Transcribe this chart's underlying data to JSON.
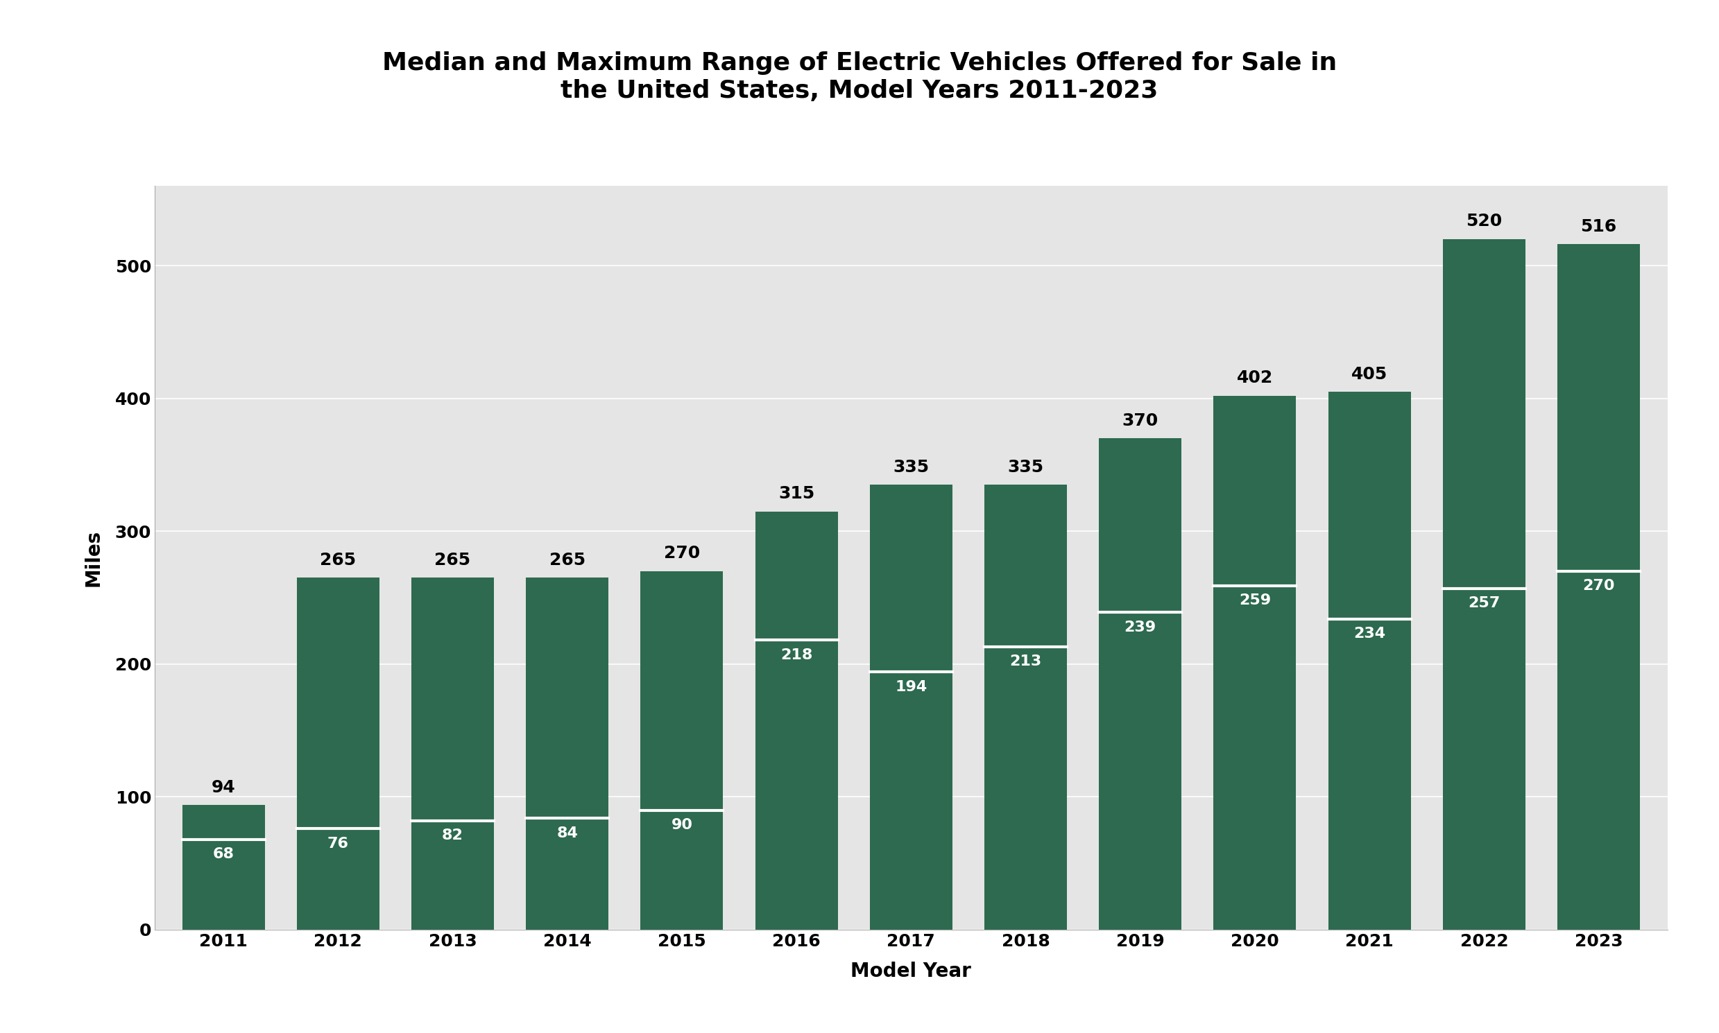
{
  "years": [
    2011,
    2012,
    2013,
    2014,
    2015,
    2016,
    2017,
    2018,
    2019,
    2020,
    2021,
    2022,
    2023
  ],
  "max_range": [
    94,
    265,
    265,
    265,
    270,
    315,
    335,
    335,
    370,
    402,
    405,
    520,
    516
  ],
  "median_range": [
    68,
    76,
    82,
    84,
    90,
    218,
    194,
    213,
    239,
    259,
    234,
    257,
    270
  ],
  "bar_color": "#2d6a4f",
  "median_line_color": "#ffffff",
  "background_color": "#e5e5e5",
  "outer_background": "#ffffff",
  "title_line1": "Median and Maximum Range of Electric Vehicles Offered for Sale in",
  "title_line2": "the United States, Model Years 2011-2023",
  "xlabel": "Model Year",
  "ylabel": "Miles",
  "ylim": [
    0,
    560
  ],
  "yticks": [
    0,
    100,
    200,
    300,
    400,
    500
  ],
  "title_fontsize": 26,
  "axis_label_fontsize": 20,
  "tick_fontsize": 18,
  "annotation_fontsize_max": 18,
  "annotation_fontsize_med": 16,
  "bar_width": 0.72
}
